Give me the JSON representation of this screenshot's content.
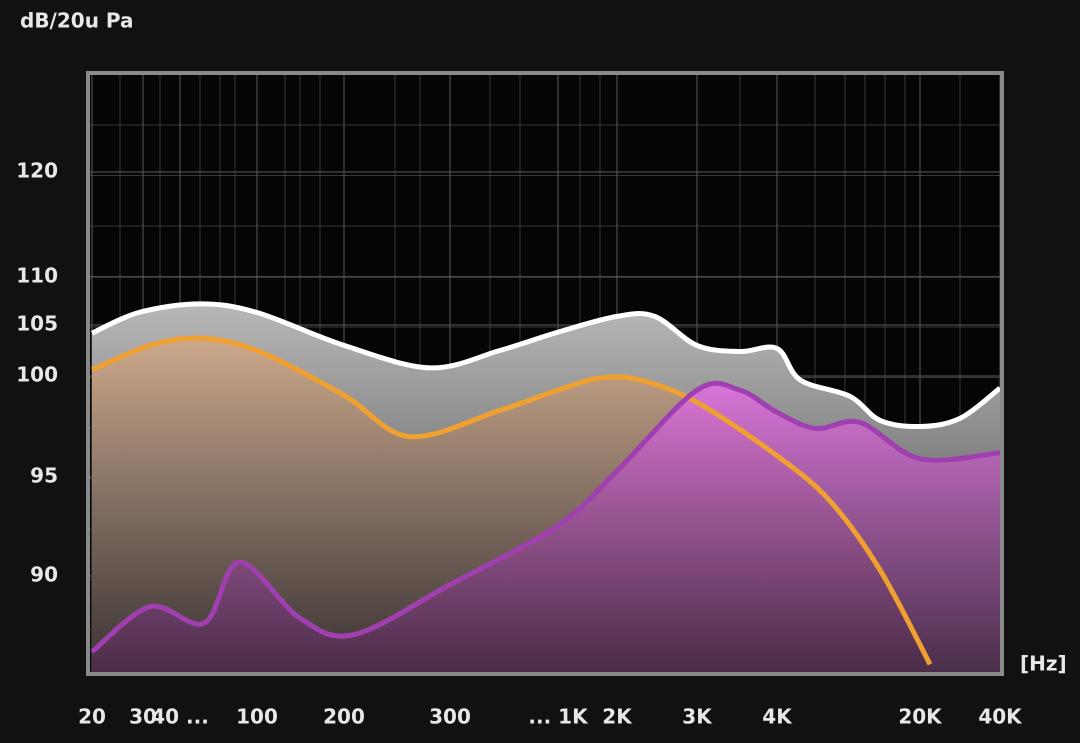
{
  "chart_data": {
    "type": "line",
    "y_label": "dB/20u Pa",
    "x_label": "[Hz]",
    "xlim": [
      20,
      40000
    ],
    "xticks": [
      20,
      30,
      {
        "value": 40,
        "label": "40 ..."
      },
      100,
      200,
      300,
      {
        "value": 1000,
        "label": "... 1K"
      },
      {
        "value": 2000,
        "label": "2K"
      },
      {
        "value": 3000,
        "label": "3K"
      },
      {
        "value": 4000,
        "label": "4K"
      },
      {
        "value": 20000,
        "label": "20K"
      },
      {
        "value": 40000,
        "label": "40K"
      }
    ],
    "ylim": [
      85,
      129
    ],
    "yticks": [
      90,
      95,
      100,
      105,
      110,
      120
    ],
    "grid": true,
    "series": [
      {
        "color": "#ffffff",
        "fill": "#9a9a9a",
        "x": [
          20,
          29,
          51,
          100,
          200,
          278,
          523,
          1000,
          2000,
          2420,
          3000,
          3500,
          4000,
          5200,
          9070,
          12760,
          20000,
          28280,
          40000
        ],
        "values": [
          104.2,
          106.3,
          107.2,
          106.3,
          103.0,
          100.8,
          102.5,
          104.3,
          105.9,
          105.9,
          103.0,
          102.4,
          102.7,
          99.8,
          99.0,
          97.8,
          97.5,
          97.9,
          99.4
        ]
      },
      {
        "color": "#f0a030",
        "fill": "#e8b080",
        "x": [
          20,
          31.7,
          51,
          100,
          200,
          257,
          523,
          1000,
          1640,
          2250,
          3000,
          4000,
          7250,
          12760,
          21810
        ],
        "values": [
          100.6,
          103.0,
          103.7,
          102.5,
          99.05,
          97.0,
          98.3,
          99.3,
          99.9,
          99.8,
          98.7,
          96.05,
          93.8,
          90.3,
          85.4
        ]
      },
      {
        "color": "#a040b0",
        "fill": "#d060d0",
        "x": [
          20,
          31.7,
          53.5,
          81,
          141,
          208,
          300,
          1000,
          2000,
          3000,
          3500,
          4000,
          6190,
          10190,
          20000,
          40000
        ],
        "values": [
          86.05,
          88.4,
          87.55,
          90.7,
          87.8,
          86.95,
          89.55,
          92.55,
          95.3,
          99.3,
          99.3,
          98.2,
          97.4,
          97.7,
          95.9,
          96.2
        ]
      }
    ]
  }
}
